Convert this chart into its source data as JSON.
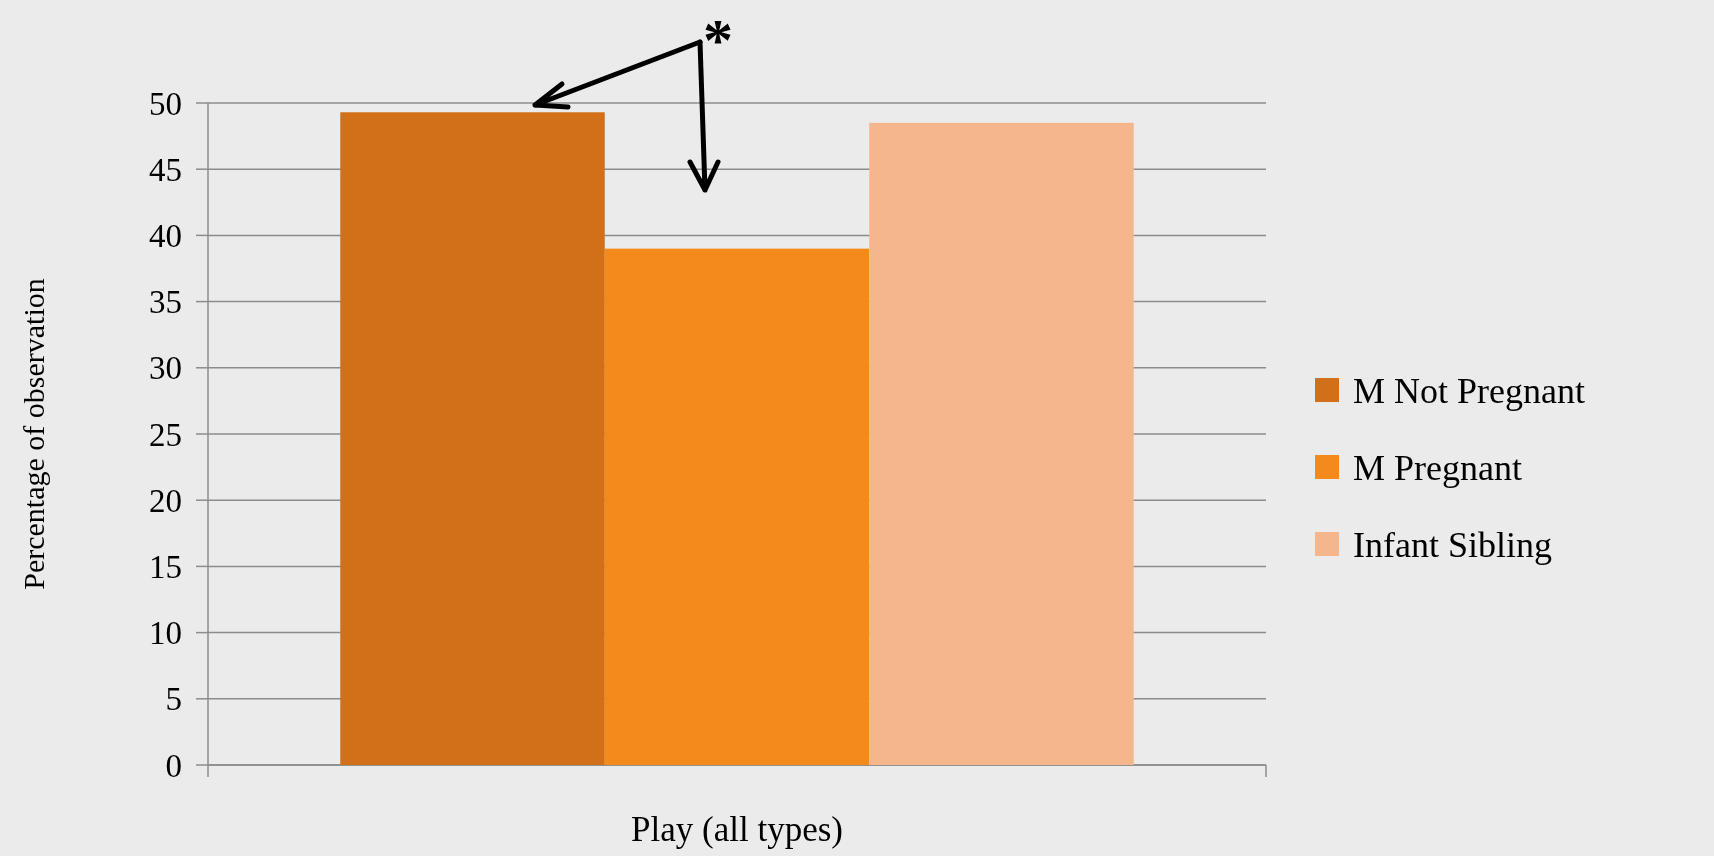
{
  "chart_data": {
    "type": "bar",
    "categories": [
      "Play (all types)"
    ],
    "ylabel": "Percentage of observation",
    "series": [
      {
        "name": "M Not Pregnant",
        "color": "#d2701a",
        "values": [
          49.3
        ]
      },
      {
        "name": "M Pregnant",
        "color": "#f48a1c",
        "values": [
          39
        ]
      },
      {
        "name": "Infant Sibling",
        "color": "#f6b68c",
        "values": [
          48.5
        ]
      }
    ],
    "ylim": [
      0,
      50
    ],
    "yticks": [
      0,
      5,
      10,
      15,
      20,
      25,
      30,
      35,
      40,
      45,
      50
    ],
    "grid": "y",
    "legend": "right",
    "annotations": [
      "*"
    ]
  }
}
